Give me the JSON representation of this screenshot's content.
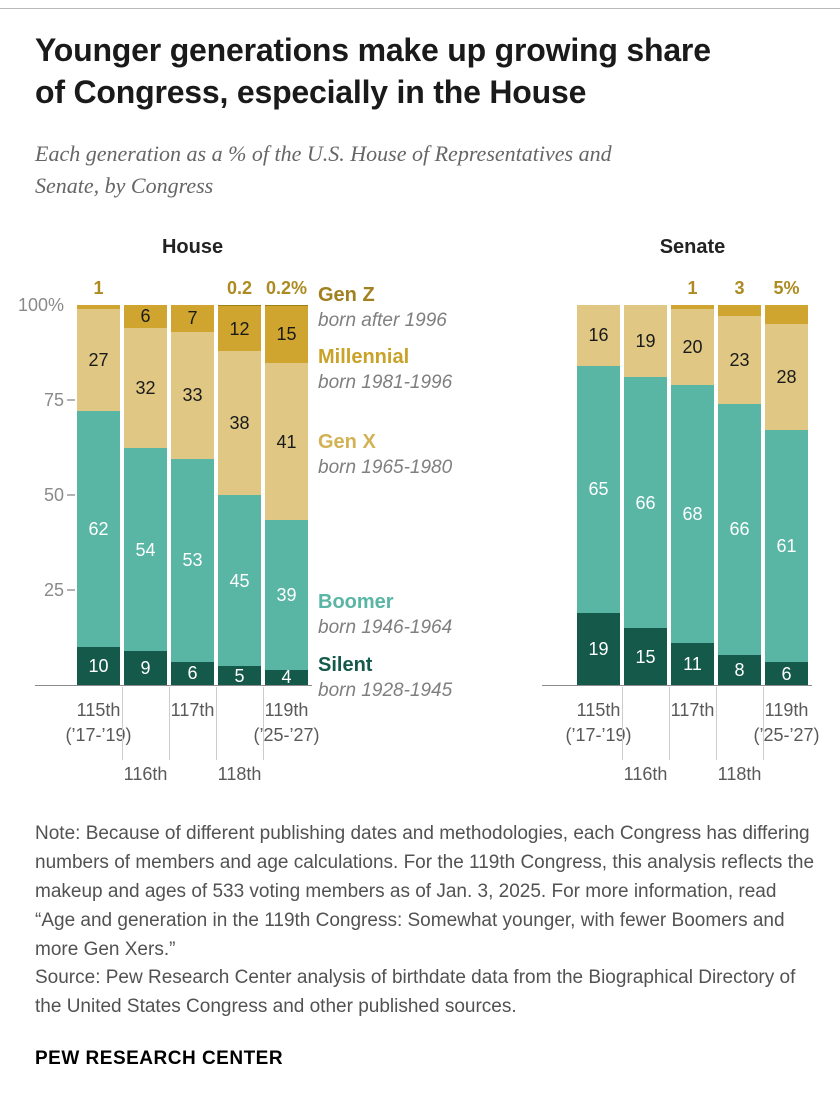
{
  "header": {
    "title_line1": "Younger generations make up growing share",
    "title_line2": "of Congress, especially in the House",
    "subtitle_line1": "Each generation as a % of the U.S. House of Representatives and",
    "subtitle_line2": "Senate, by Congress"
  },
  "chart_data": {
    "type": "bar",
    "stacked": true,
    "title": "Younger generations make up growing share of Congress, especially in the House",
    "subtitle": "Each generation as a % of the U.S. House of Representatives and Senate, by Congress",
    "unit": "%",
    "ylim": [
      0,
      100
    ],
    "yticks": [
      "100%",
      "75",
      "50",
      "25"
    ],
    "legend": [
      {
        "name": "Gen Z",
        "born": "born after 1996",
        "color": "#9e7e17",
        "label_color": "#a0801f"
      },
      {
        "name": "Millennial",
        "born": "born 1981-1996",
        "color": "#cfa52f",
        "label_color": "#c9a227"
      },
      {
        "name": "Gen X",
        "born": "born 1965-1980",
        "color": "#e0c884",
        "label_color": "#d2b254"
      },
      {
        "name": "Boomer",
        "born": "born 1946-1964",
        "color": "#59b5a4",
        "label_color": "#59b5a4"
      },
      {
        "name": "Silent",
        "born": "born 1928-1945",
        "color": "#14594a",
        "label_color": "#14594a"
      }
    ],
    "panels": [
      {
        "title": "House",
        "congresses": [
          [
            "115th",
            "(’17-’19)"
          ],
          [
            "116th"
          ],
          [
            "117th"
          ],
          [
            "118th"
          ],
          [
            "119th",
            "(’25-’27)"
          ]
        ],
        "series": [
          {
            "name": "Silent",
            "values": [
              10,
              9,
              6,
              5,
              4
            ],
            "labels": [
              "10",
              "9",
              "6",
              "5",
              "4"
            ]
          },
          {
            "name": "Boomer",
            "values": [
              62,
              54,
              53,
              45,
              39
            ],
            "labels": [
              "62",
              "54",
              "53",
              "45",
              "39"
            ]
          },
          {
            "name": "Gen X",
            "values": [
              27,
              32,
              33,
              38,
              41
            ],
            "labels": [
              "27",
              "32",
              "33",
              "38",
              "41"
            ]
          },
          {
            "name": "Millennial",
            "values": [
              1,
              6,
              7,
              12,
              15
            ],
            "labels": [
              "",
              "6",
              "7",
              "12",
              "15"
            ]
          },
          {
            "name": "Gen Z",
            "values": [
              0,
              0,
              0,
              0.2,
              0.2
            ],
            "labels": [
              "",
              "",
              "",
              "",
              ""
            ]
          }
        ],
        "top_labels": [
          "1",
          "",
          "",
          "0.2",
          "0.2%"
        ]
      },
      {
        "title": "Senate",
        "congresses": [
          [
            "115th",
            "(’17-’19)"
          ],
          [
            "116th"
          ],
          [
            "117th"
          ],
          [
            "118th"
          ],
          [
            "119th",
            "(’25-’27)"
          ]
        ],
        "series": [
          {
            "name": "Silent",
            "values": [
              19,
              15,
              11,
              8,
              6
            ],
            "labels": [
              "19",
              "15",
              "11",
              "8",
              "6"
            ]
          },
          {
            "name": "Boomer",
            "values": [
              65,
              66,
              68,
              66,
              61
            ],
            "labels": [
              "65",
              "66",
              "68",
              "66",
              "61"
            ]
          },
          {
            "name": "Gen X",
            "values": [
              16,
              19,
              20,
              23,
              28
            ],
            "labels": [
              "16",
              "19",
              "20",
              "23",
              "28"
            ]
          },
          {
            "name": "Millennial",
            "values": [
              0,
              0,
              1,
              3,
              5
            ],
            "labels": [
              "",
              "",
              "",
              "",
              ""
            ]
          },
          {
            "name": "Gen Z",
            "values": [
              0,
              0,
              0,
              0,
              0
            ],
            "labels": [
              "",
              "",
              "",
              "",
              ""
            ]
          }
        ],
        "top_labels": [
          "",
          "",
          "1",
          "3",
          "5%"
        ]
      }
    ]
  },
  "footer": {
    "note": "Note: Because of different publishing dates and methodologies, each Congress has differing numbers of members and age calculations. For the 119th Congress, this analysis reflects the makeup and ages of 533 voting members as of Jan. 3, 2025. For more information, read “Age and generation in the 119th Congress: Somewhat younger, with fewer Boomers and more Gen Xers.”",
    "source": "Source: Pew Research Center analysis of birthdate data from the Biographical Directory of the United States Congress and other published sources.",
    "brand": "PEW RESEARCH CENTER"
  }
}
